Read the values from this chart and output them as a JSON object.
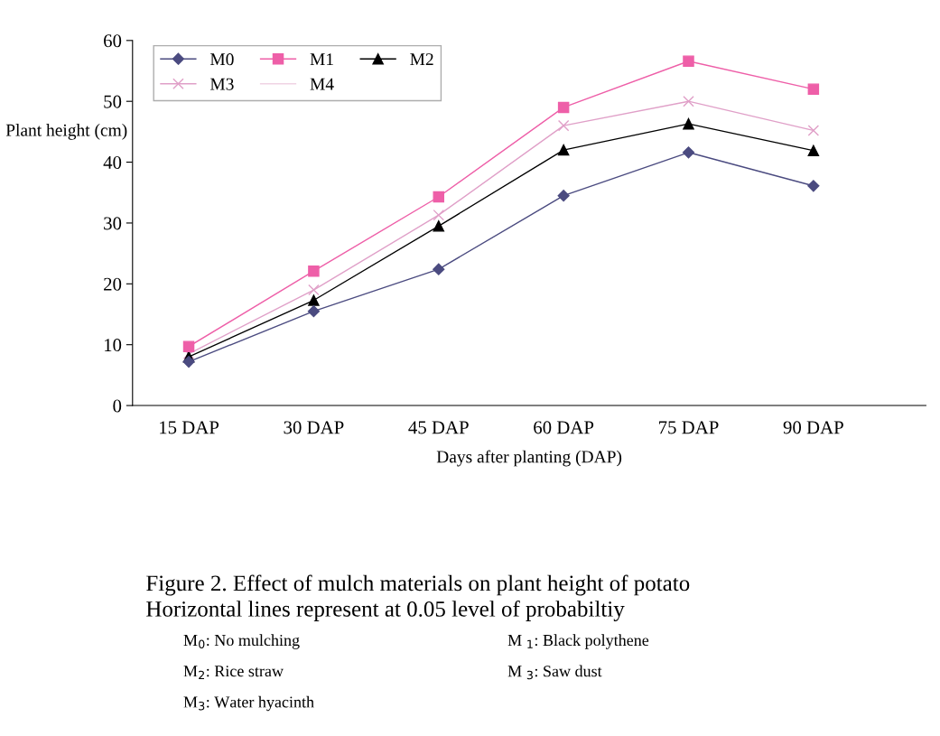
{
  "chart_data": {
    "type": "line",
    "xlabel": "Days after planting (DAP)",
    "ylabel": "Plant height (cm)",
    "categories": [
      "15 DAP",
      "30 DAP",
      "45 DAP",
      "60 DAP",
      "75 DAP",
      "90 DAP"
    ],
    "series": [
      {
        "name": "M0",
        "color": "#4b4b80",
        "marker": "diamond",
        "values": [
          7.2,
          15.5,
          22.4,
          34.5,
          41.6,
          36.1
        ]
      },
      {
        "name": "M1",
        "color": "#ee5fa8",
        "marker": "square",
        "values": [
          9.7,
          22.1,
          34.3,
          49.0,
          56.6,
          52.0
        ]
      },
      {
        "name": "M2",
        "color": "#000000",
        "marker": "triangle",
        "values": [
          8.0,
          17.3,
          29.5,
          42.0,
          46.3,
          41.9
        ]
      },
      {
        "name": "M3",
        "color": "#e0a0c8",
        "marker": "cross",
        "values": [
          8.5,
          19.0,
          31.3,
          46.0,
          50.0,
          45.2
        ]
      },
      {
        "name": "M4",
        "color": "#f0d4e4",
        "marker": "none",
        "values": [
          null,
          null,
          null,
          null,
          null,
          null
        ]
      }
    ],
    "ylim": [
      0,
      60
    ],
    "yticks": [
      0,
      10,
      20,
      30,
      40,
      50,
      60
    ],
    "grid": false,
    "legend": "top",
    "annotations": [
      "Figure 2. Effect of mulch materials on plant height of potato",
      "Horizontal lines represent at 0.05 level of probabiltiy",
      "M$_{0}$: No mulching",
      "M $_{1}$: Black polythene",
      "M$_{2}$: Rice straw",
      "M $_{3}$: Saw dust",
      "M$_{3}$: Water hyacinth"
    ]
  }
}
